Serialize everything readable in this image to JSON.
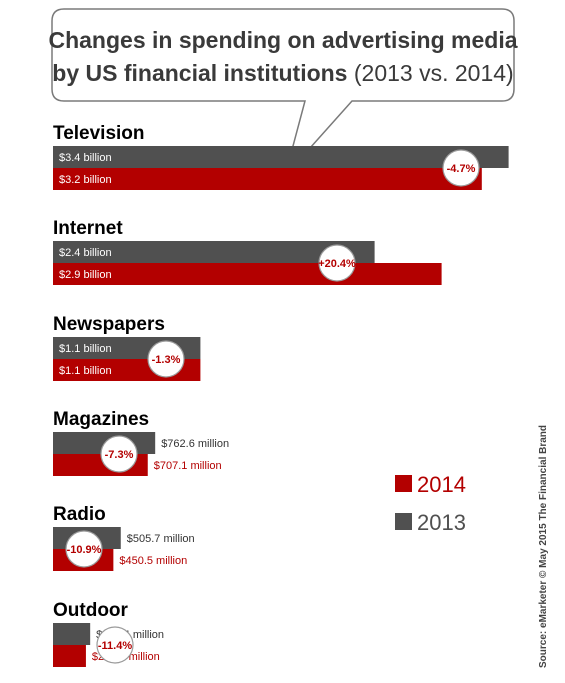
{
  "chart_data": {
    "type": "bar",
    "title_line1": "Changes in spending on advertising media",
    "title_line2_bold": "by US financial institutions",
    "title_line2_normal": "(2013 vs. 2014)",
    "unit": "billion USD",
    "categories": [
      "Television",
      "Internet",
      "Newspapers",
      "Magazines",
      "Radio",
      "Outdoor"
    ],
    "series": [
      {
        "name": "2013",
        "color": "#505050",
        "values": [
          3.4,
          2.4,
          1.1,
          0.7626,
          0.5057,
          0.2774
        ]
      },
      {
        "name": "2014",
        "color": "#b30000",
        "values": [
          3.2,
          2.9,
          1.1,
          0.7071,
          0.4505,
          0.2457
        ]
      }
    ],
    "value_labels_2013": [
      "$3.4 billion",
      "$2.4 billion",
      "$1.1 billion",
      "$762.6 million",
      "$505.7 million",
      "$277.4 million"
    ],
    "value_labels_2014": [
      "$3.2 billion",
      "$2.9 billion",
      "$1.1 billion",
      "$707.1 million",
      "$450.5 million",
      "$245.7 million"
    ],
    "changes": [
      "-4.7%",
      "+20.4%",
      "-1.3%",
      "-7.3%",
      "-10.9%",
      "-11.4%"
    ],
    "legend": [
      {
        "label": "2014",
        "color": "#b30000"
      },
      {
        "label": "2013",
        "color": "#505050"
      }
    ],
    "source": "Source: eMarketer © May 2015 The Financial Brand"
  }
}
